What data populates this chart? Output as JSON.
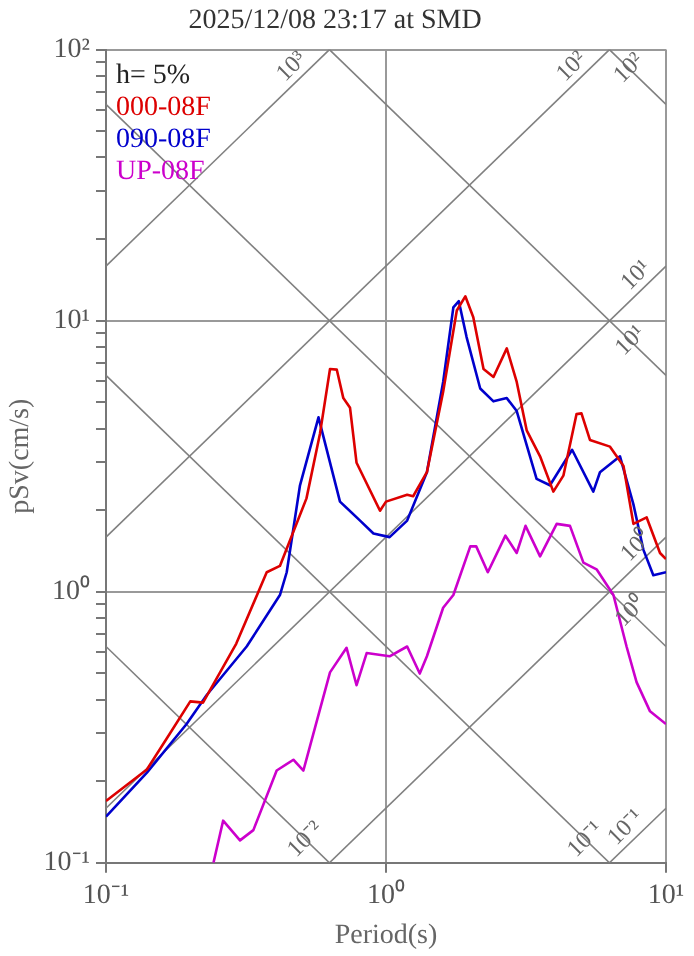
{
  "chart_data": {
    "type": "line",
    "title": "2025/12/08 23:17 at SMD",
    "xlabel": "Period(s)",
    "ylabel": "pSv(cm/s)",
    "log": "xy",
    "grid": true,
    "legend": "top left",
    "marker": "none",
    "line_style": "solid",
    "xlim": [
      0.1,
      10
    ],
    "ylim": [
      0.1,
      100
    ],
    "xticks": [
      {
        "value": 0.1,
        "label": "10⁻¹"
      },
      {
        "value": 1,
        "label": "10⁰"
      },
      {
        "value": 10,
        "label": "10¹"
      }
    ],
    "yticks": [
      {
        "value": 0.1,
        "label": "10⁻¹"
      },
      {
        "value": 0.2,
        "label": null
      },
      {
        "value": 0.3,
        "label": null
      },
      {
        "value": 0.4,
        "label": null
      },
      {
        "value": 0.5,
        "label": null
      },
      {
        "value": 0.6,
        "label": null
      },
      {
        "value": 0.7,
        "label": null
      },
      {
        "value": 0.8,
        "label": null
      },
      {
        "value": 0.9,
        "label": null
      },
      {
        "value": 1,
        "label": "10⁰"
      },
      {
        "value": 2,
        "label": null
      },
      {
        "value": 3,
        "label": null
      },
      {
        "value": 4,
        "label": null
      },
      {
        "value": 5,
        "label": null
      },
      {
        "value": 6,
        "label": null
      },
      {
        "value": 7,
        "label": null
      },
      {
        "value": 8,
        "label": null
      },
      {
        "value": 9,
        "label": null
      },
      {
        "value": 10,
        "label": "10¹"
      },
      {
        "value": 20,
        "label": null
      },
      {
        "value": 30,
        "label": null
      },
      {
        "value": 40,
        "label": null
      },
      {
        "value": 50,
        "label": null
      },
      {
        "value": 60,
        "label": null
      },
      {
        "value": 70,
        "label": null
      },
      {
        "value": 80,
        "label": null
      },
      {
        "value": 90,
        "label": null
      },
      {
        "value": 100,
        "label": "10²"
      }
    ],
    "series": [
      {
        "name": "000-08F",
        "color": "#dd0000",
        "x": [
          0.1,
          0.14,
          0.165,
          0.2,
          0.222,
          0.292,
          0.375,
          0.418,
          0.52,
          0.581,
          0.631,
          0.667,
          0.704,
          0.744,
          0.785,
          0.952,
          1.0,
          1.19,
          1.25,
          1.4,
          1.6,
          1.79,
          1.92,
          2.05,
          2.23,
          2.42,
          2.7,
          2.93,
          3.18,
          3.55,
          3.96,
          4.3,
          4.79,
          4.99,
          5.35,
          6.31,
          7.05,
          7.65,
          8.53,
          9.52,
          10
        ],
        "values": [
          0.169,
          0.221,
          0.288,
          0.394,
          0.39,
          0.644,
          1.18,
          1.245,
          2.21,
          3.83,
          6.63,
          6.6,
          5.18,
          4.77,
          2.99,
          1.99,
          2.15,
          2.28,
          2.25,
          2.76,
          5.47,
          10.9,
          12.3,
          10.3,
          6.63,
          6.2,
          7.9,
          5.94,
          3.94,
          3.16,
          2.34,
          2.68,
          4.52,
          4.55,
          3.63,
          3.43,
          2.91,
          1.78,
          1.88,
          1.39,
          1.32
        ]
      },
      {
        "name": "090-08F",
        "color": "#0000cc",
        "x": [
          0.1,
          0.14,
          0.194,
          0.229,
          0.318,
          0.418,
          0.442,
          0.493,
          0.574,
          0.685,
          0.808,
          0.902,
          1.03,
          1.19,
          1.4,
          1.6,
          1.74,
          1.82,
          1.94,
          2.17,
          2.42,
          2.7,
          2.93,
          3.45,
          3.85,
          4.62,
          5.5,
          5.81,
          6.85,
          7.65,
          8.3,
          9.01,
          10
        ],
        "values": [
          0.148,
          0.215,
          0.325,
          0.416,
          0.628,
          0.972,
          1.18,
          2.47,
          4.4,
          2.15,
          1.83,
          1.64,
          1.59,
          1.83,
          2.76,
          5.94,
          11.2,
          11.8,
          8.7,
          5.62,
          5.04,
          5.18,
          4.64,
          2.61,
          2.47,
          3.34,
          2.34,
          2.76,
          3.16,
          2.1,
          1.43,
          1.15,
          1.18
        ]
      },
      {
        "name": "UP-08F",
        "color": "#cc00cc",
        "x": [
          0.242,
          0.262,
          0.301,
          0.336,
          0.407,
          0.467,
          0.507,
          0.631,
          0.723,
          0.785,
          0.853,
          1.03,
          1.19,
          1.32,
          1.4,
          1.6,
          1.74,
          2.0,
          2.1,
          2.31,
          2.67,
          2.93,
          3.15,
          3.55,
          4.07,
          4.54,
          5.07,
          5.65,
          6.49,
          7.23,
          7.85,
          8.77,
          10
        ],
        "values": [
          0.1,
          0.143,
          0.121,
          0.132,
          0.219,
          0.24,
          0.219,
          0.504,
          0.621,
          0.452,
          0.594,
          0.578,
          0.628,
          0.499,
          0.578,
          0.873,
          0.973,
          1.47,
          1.47,
          1.18,
          1.61,
          1.39,
          1.75,
          1.35,
          1.78,
          1.75,
          1.28,
          1.21,
          0.973,
          0.628,
          0.464,
          0.362,
          0.325
        ]
      },
      {
        "color": "#808080",
        "x": [
          0.1,
          0.628
        ],
        "values": [
          15.9,
          100
        ]
      },
      {
        "color": "#808080",
        "x": [
          0.1,
          6.28
        ],
        "values": [
          1.59,
          100
        ]
      },
      {
        "color": "#808080",
        "x": [
          0.1,
          10
        ],
        "values": [
          0.159,
          15.9
        ]
      },
      {
        "color": "#808080",
        "x": [
          0.628,
          10
        ],
        "values": [
          0.1,
          1.59
        ]
      },
      {
        "color": "#808080",
        "x": [
          6.28,
          10
        ],
        "values": [
          0.1,
          0.159
        ]
      },
      {
        "color": "#808080",
        "x": [
          6.28,
          10
        ],
        "values": [
          100,
          62.8
        ]
      },
      {
        "color": "#808080",
        "x": [
          0.628,
          10
        ],
        "values": [
          100,
          6.28
        ]
      },
      {
        "color": "#808080",
        "x": [
          0.1,
          10
        ],
        "values": [
          62.8,
          0.628
        ]
      },
      {
        "color": "#808080",
        "x": [
          0.1,
          6.28
        ],
        "values": [
          6.28,
          0.1
        ]
      },
      {
        "color": "#808080",
        "x": [
          0.1,
          0.628
        ],
        "values": [
          0.628,
          0.1
        ]
      }
    ],
    "annotations": [
      "h= 5%",
      {
        "text": "10³",
        "x": 0.5,
        "y": 79.5
      },
      {
        "text": "10²",
        "x": 5,
        "y": 79.5
      },
      {
        "text": "10²",
        "x": 8,
        "y": 78.5
      },
      {
        "text": "10¹",
        "x": 8.5,
        "y": 13.5
      },
      {
        "text": "10¹",
        "x": 8.1,
        "y": 7.75
      },
      {
        "text": "10⁰",
        "x": 8.5,
        "y": 1.35
      },
      {
        "text": "10⁰",
        "x": 8.1,
        "y": 0.775
      },
      {
        "text": "10⁻²",
        "x": 0.56,
        "y": 0.112
      },
      {
        "text": "10⁻¹",
        "x": 5.6,
        "y": 0.112
      },
      {
        "text": "10⁻¹",
        "x": 7.8,
        "y": 0.124
      }
    ]
  }
}
